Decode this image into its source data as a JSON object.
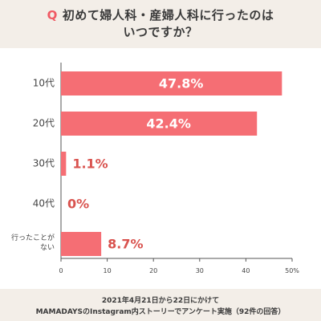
{
  "header": {
    "q_mark": "Q",
    "title_line1": "初めて婦人科・産婦人科に行ったのは",
    "title_line2": "いつですか？"
  },
  "chart_data": {
    "type": "bar",
    "orientation": "horizontal",
    "categories": [
      "10代",
      "20代",
      "30代",
      "40代",
      "行ったことが\nない"
    ],
    "values": [
      47.8,
      42.4,
      1.1,
      0,
      8.7
    ],
    "value_labels": [
      "47.8%",
      "42.4%",
      "1.1%",
      "0%",
      "8.7%"
    ],
    "xlim": [
      0,
      50
    ],
    "xticks": [
      0,
      10,
      20,
      30,
      40,
      50
    ],
    "xtick_labels": [
      "0",
      "10",
      "20",
      "30",
      "40",
      "50%"
    ],
    "bar_color": "#f56e74",
    "label_inside_color": "#ffffff",
    "label_outside_color": "#d9534f",
    "grid": false
  },
  "footer": {
    "line1": "2021年4月21日から22日にかけて",
    "line2": "MAMADAYSのInstagram内ストーリーでアンケート実施（92件の回答）"
  }
}
